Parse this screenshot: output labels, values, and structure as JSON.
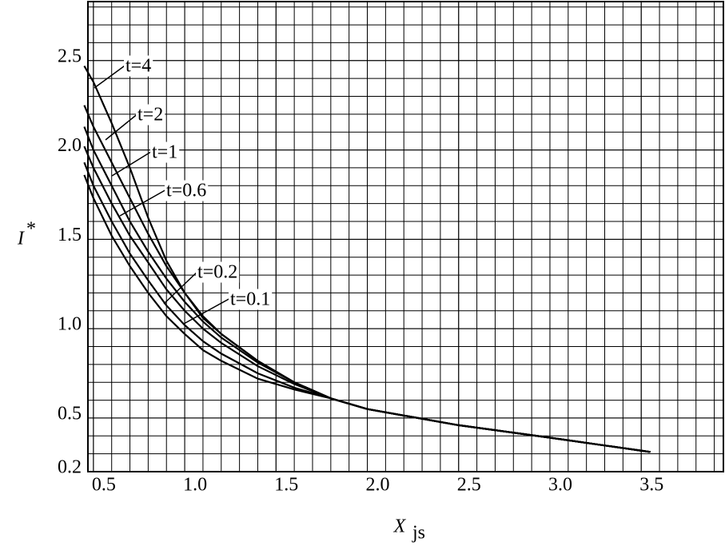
{
  "chart_data": {
    "type": "line",
    "x_label": "X",
    "x_label_sub": "js",
    "y_label": "I",
    "y_label_sub": "*",
    "x": [
      0.45,
      0.5,
      0.6,
      0.7,
      0.8,
      0.9,
      1.0,
      1.1,
      1.2,
      1.4,
      1.6,
      1.8,
      2.0,
      2.5,
      3.0,
      3.55
    ],
    "series": [
      {
        "name": "t=4",
        "color": "#000000",
        "values": [
          2.47,
          2.38,
          2.15,
          1.9,
          1.62,
          1.38,
          1.2,
          1.06,
          0.97,
          0.82,
          0.7,
          0.61,
          0.55,
          0.46,
          0.39,
          0.31
        ]
      },
      {
        "name": "t=2",
        "color": "#000000",
        "values": [
          2.25,
          2.13,
          1.93,
          1.73,
          1.53,
          1.35,
          1.2,
          1.07,
          0.97,
          0.82,
          0.7,
          0.61,
          0.55,
          0.46,
          0.39,
          0.31
        ]
      },
      {
        "name": "t=1",
        "color": "#000000",
        "values": [
          2.13,
          2.0,
          1.8,
          1.6,
          1.43,
          1.28,
          1.15,
          1.04,
          0.95,
          0.81,
          0.7,
          0.61,
          0.55,
          0.46,
          0.39,
          0.31
        ]
      },
      {
        "name": "t=0.6",
        "color": "#000000",
        "values": [
          2.02,
          1.9,
          1.7,
          1.52,
          1.37,
          1.22,
          1.1,
          1.0,
          0.92,
          0.79,
          0.69,
          0.61,
          0.55,
          0.46,
          0.39,
          0.31
        ]
      },
      {
        "name": "t=0.2",
        "color": "#000000",
        "values": [
          1.93,
          1.8,
          1.6,
          1.42,
          1.27,
          1.13,
          1.02,
          0.93,
          0.86,
          0.75,
          0.67,
          0.61,
          0.55,
          0.46,
          0.39,
          0.31
        ]
      },
      {
        "name": "t=0.1",
        "color": "#000000",
        "values": [
          1.86,
          1.73,
          1.52,
          1.35,
          1.2,
          1.07,
          0.97,
          0.88,
          0.82,
          0.72,
          0.66,
          0.61,
          0.55,
          0.46,
          0.39,
          0.31
        ]
      }
    ],
    "xlim": [
      0.47,
      3.95
    ],
    "ylim": [
      0.2,
      2.83
    ],
    "xticks": [
      0.5,
      {
        "value": 1,
        "label": "1.0"
      },
      1.5,
      {
        "value": 2,
        "label": "2.0"
      },
      2.5,
      {
        "value": 3,
        "label": "3.0"
      },
      3.5
    ],
    "yticks": [
      0.2,
      0.5,
      {
        "value": 1,
        "label": "1.0"
      },
      1.5,
      {
        "value": 2,
        "label": "2.0"
      },
      2.5
    ],
    "grid": true,
    "grid_step": 0.1
  }
}
